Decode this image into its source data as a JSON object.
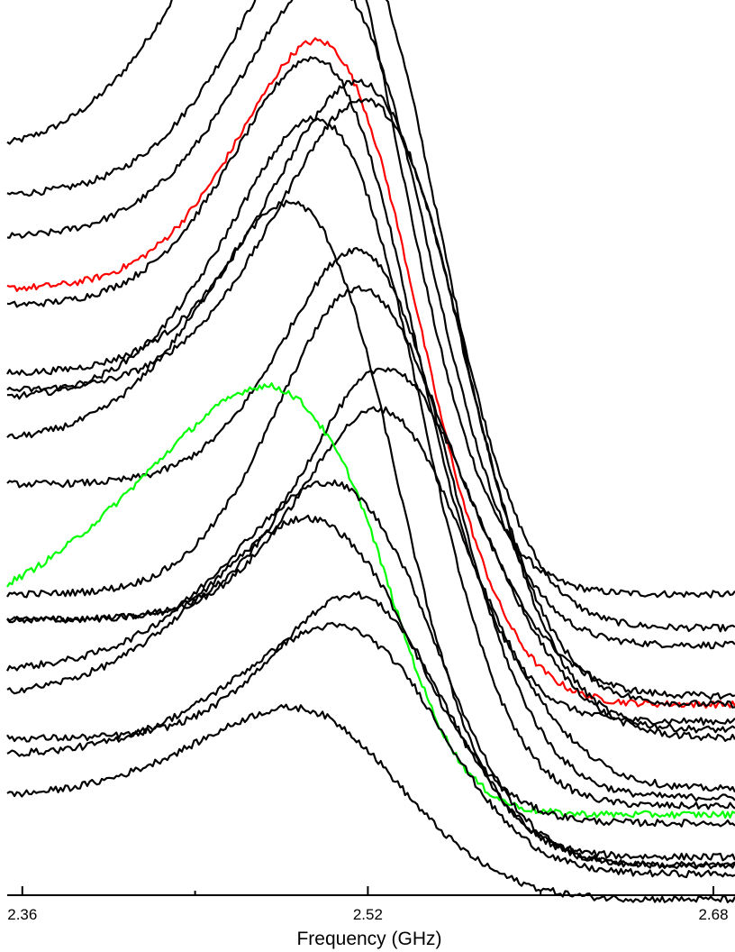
{
  "chart_data": {
    "type": "line",
    "title": "",
    "xlabel": "Frequency (GHz)",
    "ylabel": "",
    "xlim": [
      2.353,
      2.69
    ],
    "x_ticks_major": [
      2.36,
      2.52,
      2.68
    ],
    "x_tick_labels": [
      "2.36",
      "2.52",
      "2.68"
    ],
    "x_ticks_minor": [
      2.44,
      2.6
    ],
    "y_axis_shown": false,
    "grid": false,
    "legend": "none",
    "series": [
      {
        "color": "#000000",
        "baseline": 0.84,
        "peak_x": 2.518,
        "peak_height": 0.55,
        "width_left": 0.06,
        "width_right": 0.035,
        "tail": 0.32
      },
      {
        "color": "#000000",
        "baseline": 0.79,
        "peak_x": 2.535,
        "peak_height": 0.52,
        "width_left": 0.055,
        "width_right": 0.035,
        "tail": 0.28
      },
      {
        "color": "#000000",
        "baseline": 0.74,
        "peak_x": 2.533,
        "peak_height": 0.47,
        "width_left": 0.055,
        "width_right": 0.035,
        "tail": 0.26
      },
      {
        "color": "#ff0000",
        "baseline": 0.68,
        "peak_x": 2.527,
        "peak_height": 0.47,
        "width_left": 0.05,
        "width_right": 0.035,
        "tail": 0.19
      },
      {
        "color": "#000000",
        "baseline": 0.66,
        "peak_x": 2.525,
        "peak_height": 0.47,
        "width_left": 0.05,
        "width_right": 0.035,
        "tail": 0.17
      },
      {
        "color": "#000000",
        "baseline": 0.58,
        "peak_x": 2.545,
        "peak_height": 0.5,
        "width_left": 0.055,
        "width_right": 0.035,
        "tail": 0.19
      },
      {
        "color": "#000000",
        "baseline": 0.56,
        "peak_x": 2.548,
        "peak_height": 0.5,
        "width_left": 0.055,
        "width_right": 0.035,
        "tail": 0.16
      },
      {
        "color": "#000000",
        "baseline": 0.55,
        "peak_x": 2.528,
        "peak_height": 0.5,
        "width_left": 0.055,
        "width_right": 0.035,
        "tail": 0.07
      },
      {
        "color": "#000000",
        "baseline": 0.5,
        "peak_x": 2.518,
        "peak_height": 0.44,
        "width_left": 0.055,
        "width_right": 0.035,
        "tail": 0.01
      },
      {
        "color": "#000000",
        "baseline": 0.45,
        "peak_x": 2.54,
        "peak_height": 0.44,
        "width_left": 0.045,
        "width_right": 0.035,
        "tail": 0.08
      },
      {
        "color": "#000000",
        "baseline": 0.32,
        "peak_x": 2.532,
        "peak_height": 0.47,
        "width_left": 0.045,
        "width_right": 0.04,
        "tail": 0.2
      },
      {
        "color": "#000000",
        "baseline": 0.29,
        "peak_x": 2.546,
        "peak_height": 0.4,
        "width_left": 0.045,
        "width_right": 0.04,
        "tail": 0.15
      },
      {
        "color": "#000000",
        "baseline": 0.29,
        "peak_x": 2.546,
        "peak_height": 0.36,
        "width_left": 0.045,
        "width_right": 0.04,
        "tail": 0.09
      },
      {
        "color": "#00ff00",
        "baseline": 0.28,
        "peak_x": 2.51,
        "peak_height": 0.36,
        "width_left": 0.08,
        "width_right": 0.03,
        "tail": 0.06
      },
      {
        "color": "#000000",
        "baseline": 0.23,
        "peak_x": 2.533,
        "peak_height": 0.31,
        "width_left": 0.06,
        "width_right": 0.035,
        "tail": 0.0
      },
      {
        "color": "#000000",
        "baseline": 0.2,
        "peak_x": 2.52,
        "peak_height": 0.28,
        "width_left": 0.06,
        "width_right": 0.035,
        "tail": 0.05
      },
      {
        "color": "#000000",
        "baseline": 0.15,
        "peak_x": 2.535,
        "peak_height": 0.25,
        "width_left": 0.045,
        "width_right": 0.035,
        "tail": 0.0
      },
      {
        "color": "#000000",
        "baseline": 0.13,
        "peak_x": 2.535,
        "peak_height": 0.21,
        "width_left": 0.06,
        "width_right": 0.035,
        "tail": -0.01
      },
      {
        "color": "#000000",
        "baseline": 0.08,
        "peak_x": 2.517,
        "peak_height": 0.15,
        "width_left": 0.06,
        "width_right": 0.04,
        "tail": -0.04
      }
    ]
  }
}
